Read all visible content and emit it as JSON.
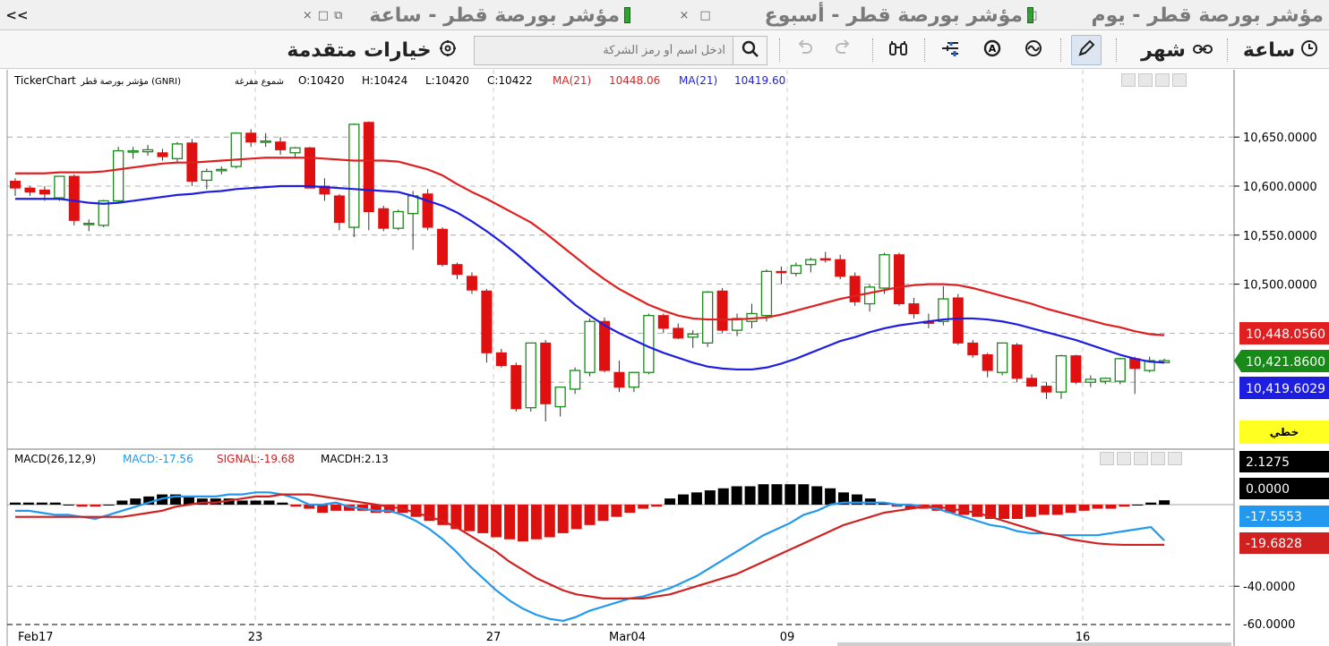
{
  "tabs": [
    {
      "title": "مؤشر بورصة قطر - يوم",
      "active": false
    },
    {
      "title": "مؤشر بورصة قطر - أسبوع",
      "active": false
    },
    {
      "title": "مؤشر بورصة قطر - ساعة",
      "active": true
    }
  ],
  "tab_controls": {
    "close": "×",
    "maximize": "□",
    "restore": "⧉"
  },
  "collapse_label": "<<",
  "toolbar": {
    "hour_label": "ساعة",
    "month_label": "شهر",
    "advanced_label": "خيارات متقدمة",
    "search_placeholder": "ادخل اسم أو رمز الشركة"
  },
  "chart_header": {
    "brand": "TickerChart",
    "index_name": "مؤشر بورصة قطر (GNRI)",
    "chart_type": "شموع مفرغة",
    "open": "O:10420",
    "high": "H:10424",
    "low": "L:10420",
    "close": "C:10422",
    "ma1_label": "MA(21)",
    "ma1_value": "10448.06",
    "ma2_label": "MA(21)",
    "ma2_value": "10419.60"
  },
  "macd_header": {
    "name": "MACD(26,12,9)",
    "macd": "MACD:-17.56",
    "signal": "SIGNAL:-19.68",
    "hist": "MACDH:2.13"
  },
  "colors": {
    "up": "#1a8a1a",
    "down": "#e01010",
    "ma_red": "#e02020",
    "ma_blue": "#1e1ee0",
    "macd_line": "#2299ee",
    "signal_line": "#d02020",
    "hist_pos": "#000000",
    "hist_neg": "#dd1010"
  },
  "price_tags": {
    "ma_red": "10,448.0560",
    "close": "10,421.8600",
    "ma_blue": "10,419.6029",
    "linear": "خطي"
  },
  "macd_tags": {
    "hist": "2.1275",
    "zero": "0.0000",
    "macd": "-17.5553",
    "signal": "-19.6828"
  },
  "x_labels": [
    "Feb17",
    "23",
    "27",
    "Mar04",
    "09",
    "16"
  ],
  "chart_data": [
    {
      "type": "candlestick",
      "title": "",
      "yticks": [
        "10,650.0000",
        "10,600.0000",
        "10,550.0000",
        "10,500.0000"
      ],
      "ylim": [
        10350,
        10680
      ],
      "candles": [
        [
          10605,
          10608,
          10590,
          10598
        ],
        [
          10598,
          10600,
          10590,
          10594
        ],
        [
          10596,
          10600,
          10585,
          10592
        ],
        [
          10588,
          10610,
          10585,
          10610
        ],
        [
          10610,
          10612,
          10560,
          10565
        ],
        [
          10562,
          10566,
          10554,
          10562
        ],
        [
          10560,
          10586,
          10558,
          10585
        ],
        [
          10585,
          10640,
          10583,
          10636
        ],
        [
          10636,
          10640,
          10628,
          10636
        ],
        [
          10635,
          10642,
          10631,
          10637
        ],
        [
          10634,
          10638,
          10626,
          10630
        ],
        [
          10628,
          10645,
          10625,
          10643
        ],
        [
          10644,
          10648,
          10600,
          10605
        ],
        [
          10606,
          10618,
          10597,
          10615
        ],
        [
          10617,
          10620,
          10612,
          10617
        ],
        [
          10620,
          10655,
          10618,
          10654
        ],
        [
          10654,
          10658,
          10640,
          10645
        ],
        [
          10645,
          10654,
          10640,
          10646
        ],
        [
          10645,
          10650,
          10632,
          10637
        ],
        [
          10634,
          10640,
          10628,
          10639
        ],
        [
          10639,
          10640,
          10600,
          10598
        ],
        [
          10600,
          10608,
          10585,
          10592
        ],
        [
          10590,
          10592,
          10555,
          10563
        ],
        [
          10558,
          10664,
          10548,
          10663
        ],
        [
          10665,
          10666,
          10555,
          10574
        ],
        [
          10577,
          10580,
          10554,
          10557
        ],
        [
          10557,
          10576,
          10555,
          10574
        ],
        [
          10572,
          10595,
          10535,
          10590
        ],
        [
          10592,
          10597,
          10555,
          10558
        ],
        [
          10556,
          10558,
          10518,
          10520
        ],
        [
          10520,
          10522,
          10505,
          10510
        ],
        [
          10508,
          10512,
          10490,
          10494
        ],
        [
          10493,
          10495,
          10420,
          10430
        ],
        [
          10430,
          10434,
          10415,
          10417
        ],
        [
          10417,
          10420,
          10370,
          10373
        ],
        [
          10374,
          10440,
          10370,
          10440
        ],
        [
          10440,
          10443,
          10360,
          10378
        ],
        [
          10375,
          10395,
          10365,
          10395
        ],
        [
          10393,
          10415,
          10388,
          10412
        ],
        [
          10410,
          10465,
          10406,
          10462
        ],
        [
          10462,
          10466,
          10410,
          10412
        ],
        [
          10410,
          10422,
          10390,
          10395
        ],
        [
          10395,
          10410,
          10390,
          10410
        ],
        [
          10410,
          10470,
          10408,
          10468
        ],
        [
          10468,
          10470,
          10450,
          10455
        ],
        [
          10455,
          10460,
          10444,
          10445
        ],
        [
          10446,
          10453,
          10435,
          10449
        ],
        [
          10440,
          10493,
          10436,
          10492
        ],
        [
          10493,
          10496,
          10450,
          10453
        ],
        [
          10453,
          10470,
          10447,
          10465
        ],
        [
          10462,
          10480,
          10455,
          10470
        ],
        [
          10468,
          10515,
          10462,
          10513
        ],
        [
          10513,
          10518,
          10500,
          10512
        ],
        [
          10511,
          10522,
          10508,
          10519
        ],
        [
          10520,
          10527,
          10512,
          10525
        ],
        [
          10526,
          10533,
          10522,
          10525
        ],
        [
          10525,
          10530,
          10505,
          10508
        ],
        [
          10508,
          10512,
          10478,
          10482
        ],
        [
          10480,
          10500,
          10472,
          10497
        ],
        [
          10496,
          10532,
          10490,
          10530
        ],
        [
          10530,
          10532,
          10478,
          10480
        ],
        [
          10480,
          10486,
          10465,
          10470
        ],
        [
          10462,
          10470,
          10455,
          10460
        ],
        [
          10462,
          10498,
          10458,
          10485
        ],
        [
          10486,
          10490,
          10438,
          10440
        ],
        [
          10440,
          10443,
          10425,
          10428
        ],
        [
          10428,
          10430,
          10405,
          10412
        ],
        [
          10410,
          10440,
          10407,
          10440
        ],
        [
          10438,
          10440,
          10400,
          10404
        ],
        [
          10404,
          10408,
          10395,
          10396
        ],
        [
          10396,
          10400,
          10383,
          10390
        ],
        [
          10390,
          10428,
          10383,
          10427
        ],
        [
          10427,
          10428,
          10398,
          10400
        ],
        [
          10400,
          10407,
          10395,
          10403
        ],
        [
          10401,
          10405,
          10398,
          10404
        ],
        [
          10401,
          10425,
          10398,
          10424
        ],
        [
          10424,
          10426,
          10388,
          10414
        ],
        [
          10412,
          10426,
          10410,
          10422
        ],
        [
          10420,
          10424,
          10420,
          10422
        ]
      ],
      "ma_red": [
        10613,
        10613,
        10613,
        10614,
        10614,
        10614,
        10615,
        10617,
        10619,
        10621,
        10623,
        10624,
        10624,
        10625,
        10626,
        10627,
        10628,
        10629,
        10629,
        10629,
        10629,
        10628,
        10627,
        10626,
        10626,
        10626,
        10625,
        10621,
        10617,
        10611,
        10602,
        10594,
        10587,
        10579,
        10571,
        10563,
        10552,
        10540,
        10528,
        10516,
        10505,
        10495,
        10487,
        10479,
        10473,
        10468,
        10465,
        10464,
        10464,
        10464,
        10465,
        10466,
        10469,
        10473,
        10477,
        10481,
        10485,
        10488,
        10491,
        10494,
        10497,
        10499,
        10500,
        10500,
        10499,
        10496,
        10492,
        10488,
        10484,
        10480,
        10475,
        10471,
        10467,
        10463,
        10459,
        10456,
        10452,
        10449,
        10448
      ],
      "ma_blue": [
        10587,
        10587,
        10587,
        10587,
        10585,
        10583,
        10582,
        10583,
        10585,
        10587,
        10589,
        10591,
        10592,
        10594,
        10595,
        10597,
        10598,
        10599,
        10600,
        10600,
        10600,
        10599,
        10598,
        10597,
        10596,
        10595,
        10594,
        10590,
        10585,
        10580,
        10573,
        10564,
        10554,
        10543,
        10531,
        10518,
        10505,
        10492,
        10479,
        10468,
        10458,
        10450,
        10443,
        10436,
        10430,
        10425,
        10420,
        10416,
        10414,
        10413,
        10413,
        10415,
        10419,
        10424,
        10430,
        10436,
        10442,
        10446,
        10451,
        10455,
        10458,
        10460,
        10462,
        10464,
        10465,
        10465,
        10464,
        10462,
        10459,
        10455,
        10451,
        10447,
        10443,
        10438,
        10433,
        10428,
        10424,
        10421,
        10420
      ]
    },
    {
      "type": "macd",
      "title": "",
      "yticks": [
        "-40.0000",
        "-60.0000"
      ],
      "ylim": [
        -62,
        15
      ],
      "macd": [
        -3,
        -3,
        -4,
        -5,
        -5,
        -6,
        -7,
        -5,
        -3,
        -1,
        1,
        3,
        4,
        4,
        4,
        4,
        5,
        5,
        6,
        6,
        5,
        3,
        0,
        0,
        1,
        -1,
        -2,
        -3,
        -3,
        -5,
        -8,
        -12,
        -17,
        -23,
        -30,
        -36,
        -42,
        -47,
        -51,
        -54,
        -56,
        -57,
        -55,
        -52,
        -50,
        -48,
        -46,
        -45,
        -43,
        -41,
        -38,
        -35,
        -31,
        -27,
        -23,
        -19,
        -15,
        -12,
        -9,
        -5,
        -3,
        0,
        1,
        1,
        1,
        1,
        0,
        0,
        -1,
        -2,
        -4,
        -6,
        -8,
        -10,
        -11,
        -13,
        -14,
        -14,
        -15,
        -15,
        -15,
        -15,
        -14,
        -13,
        -12,
        -11,
        -17.6
      ],
      "signal": [
        -6,
        -6,
        -6,
        -6,
        -6,
        -6,
        -6,
        -6,
        -6,
        -5,
        -4,
        -3,
        -1,
        0,
        1,
        1,
        2,
        3,
        4,
        4,
        5,
        5,
        5,
        4,
        3,
        2,
        1,
        0,
        -1,
        -2,
        -4,
        -6,
        -8,
        -11,
        -15,
        -19,
        -23,
        -28,
        -32,
        -36,
        -39,
        -42,
        -44,
        -45,
        -46,
        -46,
        -46,
        -46,
        -45,
        -44,
        -42,
        -40,
        -38,
        -36,
        -34,
        -31,
        -28,
        -25,
        -22,
        -19,
        -16,
        -13,
        -10,
        -8,
        -6,
        -4,
        -3,
        -2,
        -1,
        -1,
        -2,
        -3,
        -4,
        -6,
        -8,
        -10,
        -12,
        -14,
        -15,
        -17,
        -18,
        -19,
        -19.5,
        -19.7,
        -19.7,
        -19.7,
        -19.68
      ],
      "hist": [
        1,
        1,
        1,
        1,
        0,
        -1,
        -1,
        0,
        2,
        3,
        4,
        5,
        5,
        4,
        3,
        3,
        3,
        2,
        2,
        2,
        1,
        -1,
        -2,
        -4,
        -3,
        -3,
        -3,
        -4,
        -4,
        -4,
        -6,
        -8,
        -10,
        -12,
        -13,
        -14,
        -16,
        -17,
        -18,
        -17,
        -16,
        -14,
        -12,
        -10,
        -8,
        -6,
        -4,
        -2,
        -1,
        3,
        5,
        6,
        7,
        8,
        9,
        9,
        10,
        10,
        10,
        10,
        9,
        8,
        6,
        5,
        3,
        1,
        -1,
        -2,
        -2,
        -3,
        -4,
        -5,
        -6,
        -7,
        -7,
        -7,
        -6,
        -5,
        -5,
        -4,
        -3,
        -2,
        -2,
        -1,
        0,
        1,
        2.13
      ]
    }
  ]
}
